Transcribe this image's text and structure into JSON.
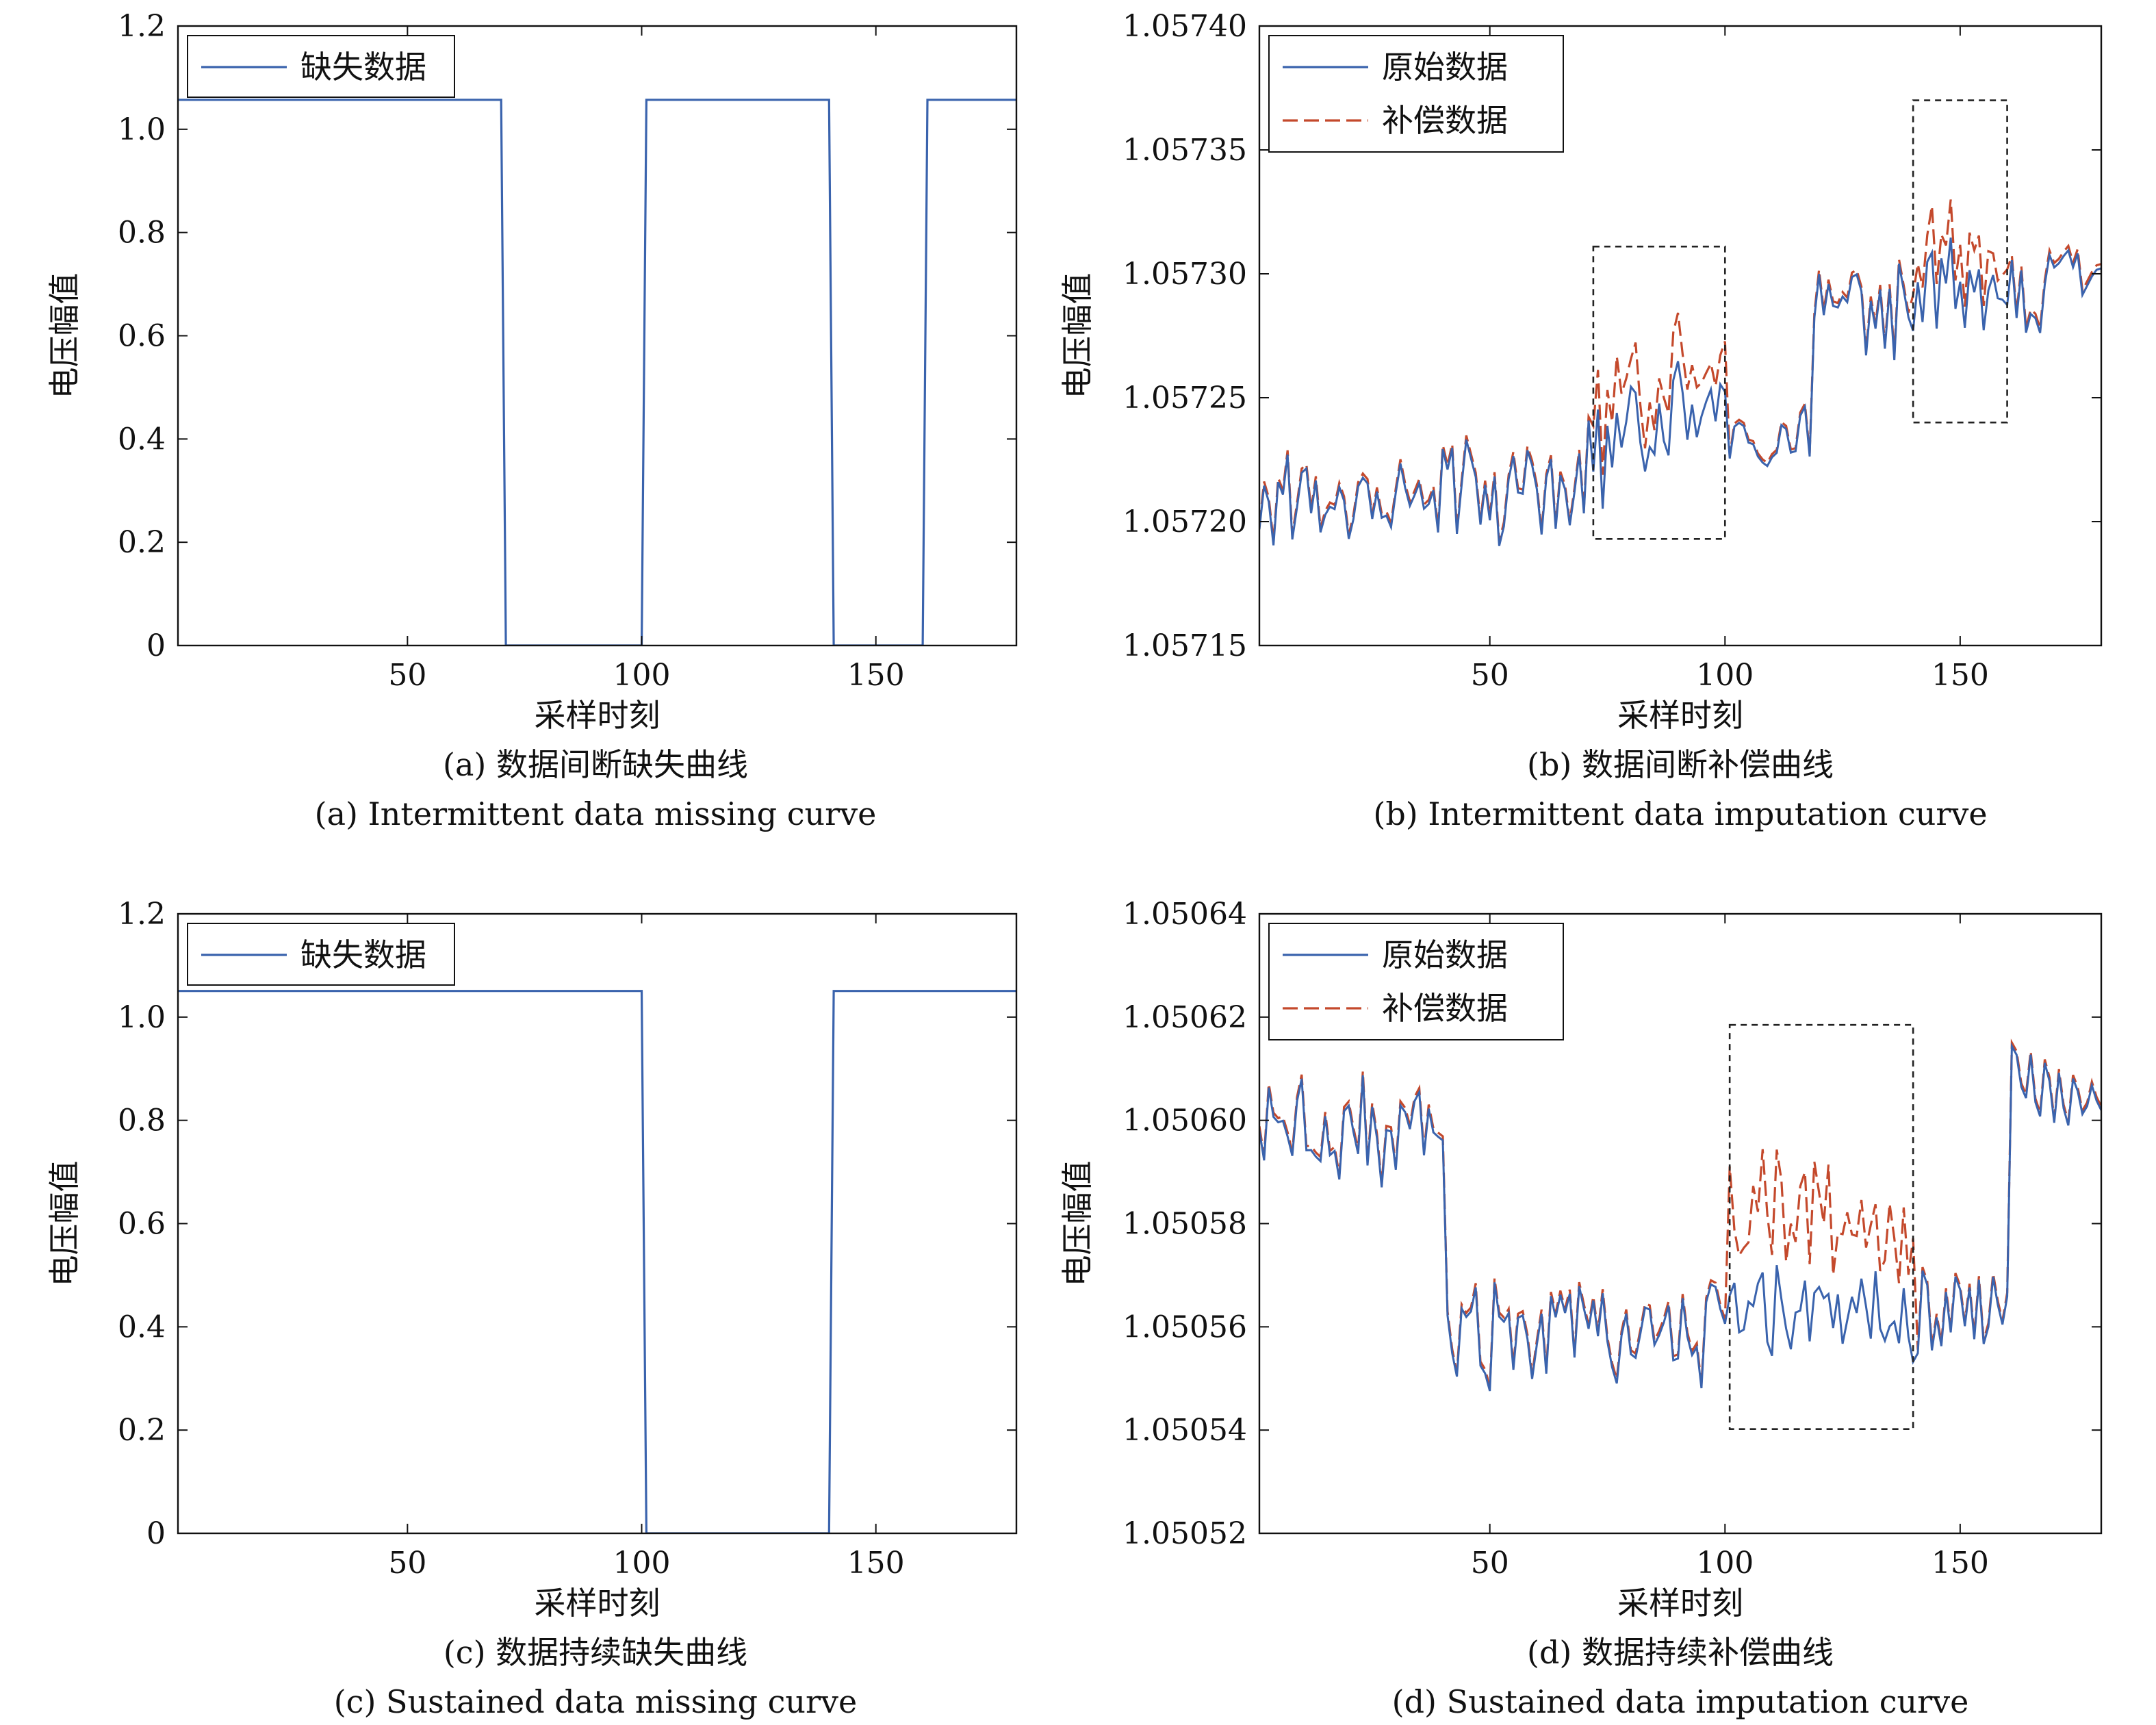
{
  "colors": {
    "original": "#3a63ad",
    "compensated": "#c4492c",
    "missing": "#3a63ad",
    "box": "#222222",
    "axis": "#111111"
  },
  "chart_data": [
    {
      "id": "a",
      "type": "line",
      "xlabel": "采样时刻",
      "ylabel": "电压幅值",
      "caption_cn": "(a) 数据间断缺失曲线",
      "caption_en": "(a) Intermittent data missing curve",
      "xlim": [
        1,
        180
      ],
      "ylim": [
        0,
        1.2
      ],
      "xticks": [
        50,
        100,
        150
      ],
      "yticks": [
        0,
        0.2,
        0.4,
        0.6,
        0.8,
        1.0,
        1.2
      ],
      "ytick_labels": [
        "0",
        "0.2",
        "0.4",
        "0.6",
        "0.8",
        "1.0",
        "1.2"
      ],
      "legend": [
        "缺失数据"
      ],
      "legend_position": "top-left",
      "series": [
        {
          "name": "缺失数据",
          "kind": "missing",
          "level": 1.057,
          "gaps": [
            [
              71,
              100
            ],
            [
              141,
              160
            ]
          ]
        }
      ]
    },
    {
      "id": "b",
      "type": "line",
      "xlabel": "采样时刻",
      "ylabel": "电压幅值",
      "caption_cn": "(b) 数据间断补偿曲线",
      "caption_en": "(b) Intermittent data imputation curve",
      "xlim": [
        1,
        180
      ],
      "ylim": [
        1.05715,
        1.0574
      ],
      "xticks": [
        50,
        100,
        150
      ],
      "yticks": [
        1.05715,
        1.0572,
        1.05725,
        1.0573,
        1.05735,
        1.0574
      ],
      "ytick_labels": [
        "1.05715",
        "1.05720",
        "1.05725",
        "1.05730",
        "1.05735",
        "1.05740"
      ],
      "legend": [
        "原始数据",
        "补偿数据"
      ],
      "legend_position": "top-left",
      "dashed_boxes": [
        {
          "x": [
            72,
            100
          ],
          "y": [
            1.057193,
            1.057311
          ]
        },
        {
          "x": [
            140,
            160
          ],
          "y": [
            1.05724,
            1.05737
          ]
        }
      ],
      "segments": [
        {
          "start": 1,
          "end": 60,
          "base": 1.05721,
          "amp": 3.4e-05,
          "trend": 4e-06
        },
        {
          "start": 61,
          "end": 100,
          "base": 1.05721,
          "amp": 3e-05,
          "trend": 5e-05
        },
        {
          "start": 101,
          "end": 118,
          "base": 1.05723,
          "amp": 2.5e-05,
          "trend": 0.0
        },
        {
          "start": 119,
          "end": 180,
          "base": 1.05728,
          "amp": 3.6e-05,
          "trend": 2.5e-05
        }
      ],
      "compensation": [
        {
          "range": [
            72,
            100
          ],
          "offset": 1.6e-05
        },
        {
          "range": [
            140,
            160
          ],
          "offset": 1.3e-05
        }
      ],
      "series": [
        {
          "name": "原始数据",
          "kind": "original"
        },
        {
          "name": "补偿数据",
          "kind": "compensated"
        }
      ]
    },
    {
      "id": "c",
      "type": "line",
      "xlabel": "采样时刻",
      "ylabel": "电压幅值",
      "caption_cn": "(c) 数据持续缺失曲线",
      "caption_en": "(c) Sustained data missing curve",
      "xlim": [
        1,
        180
      ],
      "ylim": [
        0,
        1.2
      ],
      "xticks": [
        50,
        100,
        150
      ],
      "yticks": [
        0,
        0.2,
        0.4,
        0.6,
        0.8,
        1.0,
        1.2
      ],
      "ytick_labels": [
        "0",
        "0.2",
        "0.4",
        "0.6",
        "0.8",
        "1.0",
        "1.2"
      ],
      "legend": [
        "缺失数据"
      ],
      "legend_position": "top-left",
      "series": [
        {
          "name": "缺失数据",
          "kind": "missing",
          "level": 1.0505,
          "gaps": [
            [
              101,
              140
            ]
          ]
        }
      ]
    },
    {
      "id": "d",
      "type": "line",
      "xlabel": "采样时刻",
      "ylabel": "电压幅值",
      "caption_cn": "(d) 数据持续补偿曲线",
      "caption_en": "(d) Sustained data imputation curve",
      "xlim": [
        1,
        180
      ],
      "ylim": [
        1.05052,
        1.05064
      ],
      "xticks": [
        50,
        100,
        150
      ],
      "yticks": [
        1.05052,
        1.05054,
        1.05056,
        1.05058,
        1.0506,
        1.05062,
        1.05064
      ],
      "ytick_labels": [
        "1.05052",
        "1.05054",
        "1.05056",
        "1.05058",
        "1.05060",
        "1.05062",
        "1.05064"
      ],
      "legend": [
        "原始数据",
        "补偿数据"
      ],
      "legend_position": "top-left",
      "dashed_boxes": [
        {
          "x": [
            101,
            140
          ],
          "y": [
            1.0505402,
            1.0506185
          ]
        }
      ],
      "segments": [
        {
          "start": 1,
          "end": 40,
          "base": 1.0505975,
          "amp": 1.6e-05,
          "trend": 0.0
        },
        {
          "start": 41,
          "end": 100,
          "base": 1.0505585,
          "amp": 1.6e-05,
          "trend": 0.0
        },
        {
          "start": 101,
          "end": 140,
          "base": 1.050564,
          "amp": 1.6e-05,
          "trend": 0.0
        },
        {
          "start": 141,
          "end": 160,
          "base": 1.050563,
          "amp": 1.4e-05,
          "trend": 0.0
        },
        {
          "start": 161,
          "end": 180,
          "base": 1.0506055,
          "amp": 1.4e-05,
          "trend": 0.0
        }
      ],
      "compensation": [
        {
          "range": [
            101,
            140
          ],
          "offset": 1.8e-05
        }
      ],
      "series": [
        {
          "name": "原始数据",
          "kind": "original"
        },
        {
          "name": "补偿数据",
          "kind": "compensated"
        }
      ]
    }
  ]
}
